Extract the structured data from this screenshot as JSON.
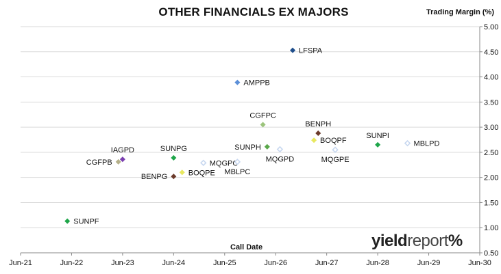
{
  "chart_data": {
    "type": "scatter",
    "title": "OTHER FINANCIALS EX MAJORS",
    "xlabel": "Call Date",
    "ylabel": "Trading Margin (%)",
    "x_ticks": [
      "Jun-21",
      "Jun-22",
      "Jun-23",
      "Jun-24",
      "Jun-25",
      "Jun-26",
      "Jun-27",
      "Jun-28",
      "Jun-29",
      "Jun-30"
    ],
    "xlim": [
      "2021-06",
      "2030-06"
    ],
    "y_ticks": [
      "0.50",
      "1.00",
      "1.50",
      "2.00",
      "2.50",
      "3.00",
      "3.50",
      "4.00",
      "4.50",
      "5.00"
    ],
    "ylim": [
      0.5,
      5.0
    ],
    "grid": "horizontal",
    "y_axis_side": "right",
    "points": [
      {
        "label": "SUNPF",
        "x": "2022-05",
        "y": 1.13,
        "color": "#1fa64a",
        "marker": "diamond-filled",
        "label_pos": "right"
      },
      {
        "label": "CGFPB",
        "x": "2023-05",
        "y": 2.31,
        "color": "#b5b08a",
        "marker": "diamond-filled",
        "label_pos": "left"
      },
      {
        "label": "IAGPD",
        "x": "2023-06",
        "y": 2.36,
        "color": "#7a3fb0",
        "marker": "diamond-filled",
        "label_pos": "above"
      },
      {
        "label": "SUNPG",
        "x": "2024-06",
        "y": 2.39,
        "color": "#1fa64a",
        "marker": "diamond-filled",
        "label_pos": "above"
      },
      {
        "label": "BENPG",
        "x": "2024-06",
        "y": 2.02,
        "color": "#6b3a2a",
        "marker": "diamond-filled",
        "label_pos": "left"
      },
      {
        "label": "BOQPE",
        "x": "2024-08",
        "y": 2.1,
        "color": "#e8e860",
        "marker": "diamond-filled",
        "label_pos": "right"
      },
      {
        "label": "MQGPC",
        "x": "2025-01",
        "y": 2.29,
        "color": "#c8d8f0",
        "marker": "diamond-open",
        "label_pos": "right"
      },
      {
        "label": "AMPPB",
        "x": "2025-09",
        "y": 3.89,
        "color": "#5b8fd8",
        "marker": "diamond-filled",
        "label_pos": "right"
      },
      {
        "label": "MBLPC",
        "x": "2025-09",
        "y": 2.31,
        "color": "#c8d8f0",
        "marker": "diamond-open",
        "label_pos": "below"
      },
      {
        "label": "CGFPC",
        "x": "2026-03",
        "y": 3.05,
        "color": "#9cc47c",
        "marker": "diamond-filled",
        "label_pos": "above"
      },
      {
        "label": "SUNPH",
        "x": "2026-04",
        "y": 2.61,
        "color": "#5aa84a",
        "marker": "diamond-filled",
        "label_pos": "left"
      },
      {
        "label": "MQGPD",
        "x": "2026-07",
        "y": 2.56,
        "color": "#c8d8f0",
        "marker": "diamond-open",
        "label_pos": "below"
      },
      {
        "label": "LFSPA",
        "x": "2026-10",
        "y": 4.53,
        "color": "#1f4e8c",
        "marker": "diamond-filled",
        "label_pos": "right"
      },
      {
        "label": "BOQPF",
        "x": "2027-03",
        "y": 2.74,
        "color": "#e8e860",
        "marker": "diamond-filled",
        "label_pos": "right"
      },
      {
        "label": "BENPH",
        "x": "2027-04",
        "y": 2.88,
        "color": "#6b3a2a",
        "marker": "diamond-filled",
        "label_pos": "above"
      },
      {
        "label": "MQGPE",
        "x": "2027-08",
        "y": 2.55,
        "color": "#c8d8f0",
        "marker": "diamond-open",
        "label_pos": "below"
      },
      {
        "label": "SUNPI",
        "x": "2028-06",
        "y": 2.65,
        "color": "#1fa64a",
        "marker": "diamond-filled",
        "label_pos": "above"
      },
      {
        "label": "MBLPD",
        "x": "2029-01",
        "y": 2.68,
        "color": "#c8d8f0",
        "marker": "diamond-open",
        "label_pos": "right"
      }
    ]
  },
  "logo": {
    "brand_bold": "yield",
    "brand_light": "report",
    "symbol": "%"
  }
}
